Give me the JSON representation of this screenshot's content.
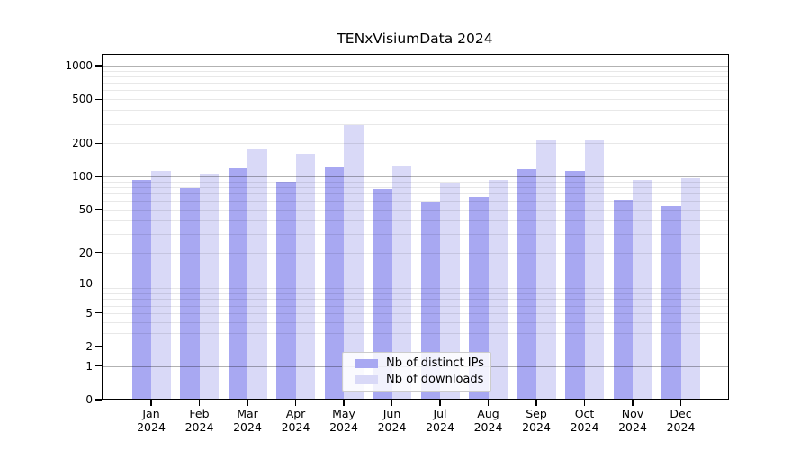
{
  "chart_data": {
    "type": "bar",
    "title": "TENxVisiumData 2024",
    "y_scale": "log1p",
    "grid": true,
    "categories": [
      "Jan",
      "Feb",
      "Mar",
      "Apr",
      "May",
      "Jun",
      "Jul",
      "Aug",
      "Sep",
      "Oct",
      "Nov",
      "Dec"
    ],
    "x_year_label": "2024",
    "series": [
      {
        "name": "Nb of distinct IPs",
        "color": "#a8a8f2",
        "values": [
          93,
          79,
          119,
          90,
          121,
          77,
          59,
          65,
          117,
          112,
          62,
          54
        ]
      },
      {
        "name": "Nb of downloads",
        "color": "#d9d9f7",
        "values": [
          112,
          107,
          176,
          160,
          292,
          123,
          88,
          93,
          212,
          214,
          93,
          97
        ]
      }
    ],
    "y_ticks": [
      0,
      1,
      2,
      5,
      10,
      20,
      50,
      100,
      200,
      500,
      1000
    ],
    "ylim": [
      0,
      1276
    ],
    "legend_position": "inside-bottom-center",
    "colors": {
      "axis": "#000000",
      "major_grid": "#b2b2b2",
      "minor_grid": "#e9e9e9",
      "legend_border": "#cccccc"
    }
  }
}
